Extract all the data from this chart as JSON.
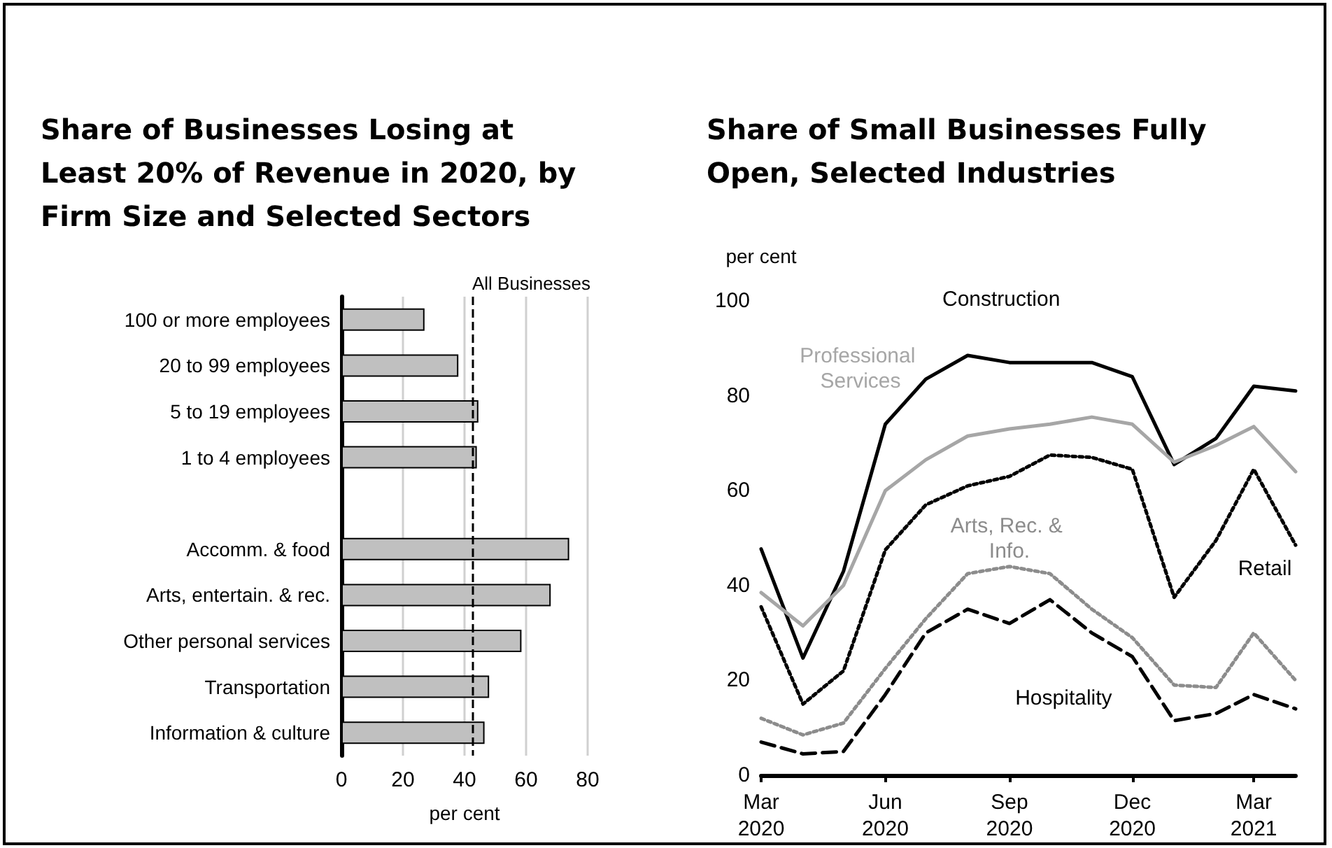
{
  "chart_data": [
    {
      "type": "bar",
      "orientation": "horizontal",
      "title": "Share of Businesses Losing at Least 20% of Revenue in 2020, by Firm Size and Selected Sectors",
      "xlabel": "per cent",
      "categories": [
        "100 or more employees",
        "20 to 99 employees",
        "5 to 19 employees",
        "1 to 4 employees",
        null,
        "Accomm. & food",
        "Arts, entertain. & rec.",
        "Other personal services",
        "Transportation",
        "Information & culture"
      ],
      "values": [
        27,
        38,
        44.5,
        44,
        null,
        74,
        68,
        58.5,
        48,
        46.5
      ],
      "color": "#c0c0c0",
      "xlim": [
        0,
        80
      ],
      "xticks": [
        0,
        20,
        40,
        60,
        80
      ],
      "grid": "x",
      "legend": false,
      "ref_lines": [
        {
          "axis": "x",
          "value": 42.5,
          "label": "All Businesses",
          "color": "#000000",
          "line_style": "dashed"
        }
      ]
    },
    {
      "type": "line",
      "title": "Share of Small Businesses Fully Open, Selected Industries",
      "ylabel": "per cent",
      "x": [
        "2020-03",
        "2020-04",
        "2020-05",
        "2020-06",
        "2020-07",
        "2020-08",
        "2020-09",
        "2020-10",
        "2020-11",
        "2020-12",
        "2021-01",
        "2021-02",
        "2021-03",
        "2021-04"
      ],
      "xlim": [
        "2020-03",
        "2021-04"
      ],
      "xticks": [
        {
          "value": "2020-03",
          "label": "Mar\n2020"
        },
        {
          "value": "2020-06",
          "label": "Jun\n2020"
        },
        {
          "value": "2020-09",
          "label": "Sep\n2020"
        },
        {
          "value": "2020-12",
          "label": "Dec\n2020"
        },
        {
          "value": "2021-03",
          "label": "Mar\n2021"
        }
      ],
      "ylim": [
        0,
        100
      ],
      "yticks": [
        0,
        20,
        40,
        60,
        80,
        100
      ],
      "grid": false,
      "legend": false,
      "marker": "none",
      "series": [
        {
          "name": "Construction",
          "color": "#000000",
          "line_style": "solid",
          "values": [
            47.7,
            24.7,
            43,
            74,
            83.5,
            88.5,
            87,
            87,
            87,
            84,
            65.5,
            71,
            82,
            81
          ]
        },
        {
          "name": "Professional Services",
          "color": "#a6a6a6",
          "line_style": "solid",
          "values": [
            38.5,
            31.5,
            40,
            60,
            66.5,
            71.5,
            73,
            74,
            75.5,
            74,
            66,
            69.5,
            73.5,
            64
          ]
        },
        {
          "name": "Retail",
          "color": "#000000",
          "line_style": "dotted",
          "values": [
            35.5,
            15,
            22,
            47.5,
            57,
            61,
            63,
            67.5,
            67,
            64.5,
            37.5,
            49.5,
            64.5,
            48.5
          ]
        },
        {
          "name": "Arts, Rec. & Info.",
          "color": "#8c8c8c",
          "line_style": "dotted",
          "values": [
            12,
            8.5,
            11,
            22.5,
            33,
            42.5,
            44,
            42.5,
            35,
            29,
            19,
            18.5,
            30,
            20
          ]
        },
        {
          "name": "Hospitality",
          "color": "#000000",
          "line_style": "dashed",
          "values": [
            7,
            4.5,
            5,
            17,
            30,
            35,
            32,
            37,
            30,
            25,
            11.5,
            13,
            17,
            14
          ]
        }
      ]
    }
  ]
}
